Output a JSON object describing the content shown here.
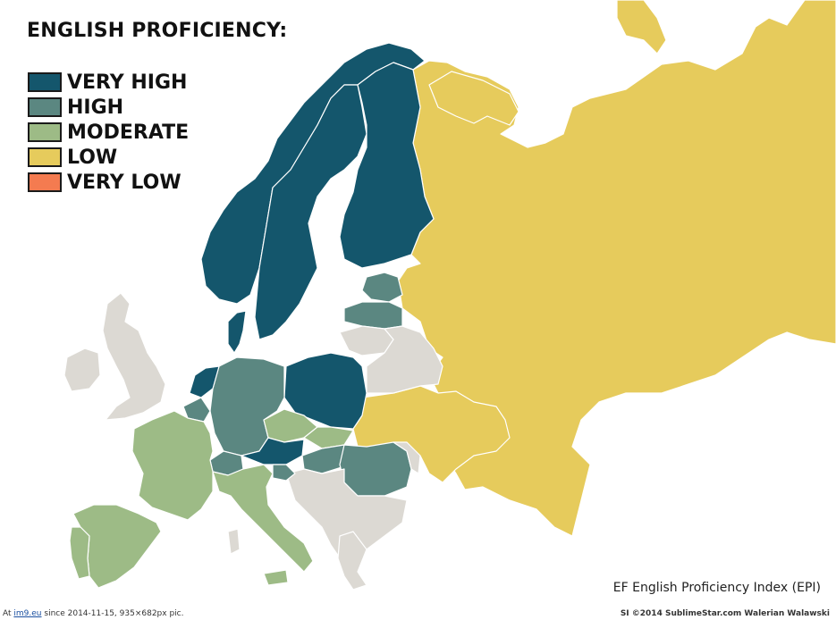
{
  "title": "ENGLISH PROFICIENCY:",
  "legend": [
    {
      "label": "VERY HIGH",
      "color": "#14566c"
    },
    {
      "label": "HIGH",
      "color": "#5b8781"
    },
    {
      "label": "MODERATE",
      "color": "#9dbb86"
    },
    {
      "label": "LOW",
      "color": "#e6cb5c"
    },
    {
      "label": "VERY LOW",
      "color": "#f47b50"
    }
  ],
  "no_data_color": "#dcd9d3",
  "source": "EF English Proficiency Index (EPI)",
  "footer": {
    "prefix": "At",
    "link": "im9.eu",
    "suffix": "since 2014-11-15, 935×682px pic.",
    "credit": "SI ©2014 SublimeStar.com Walerian Walawski"
  }
}
